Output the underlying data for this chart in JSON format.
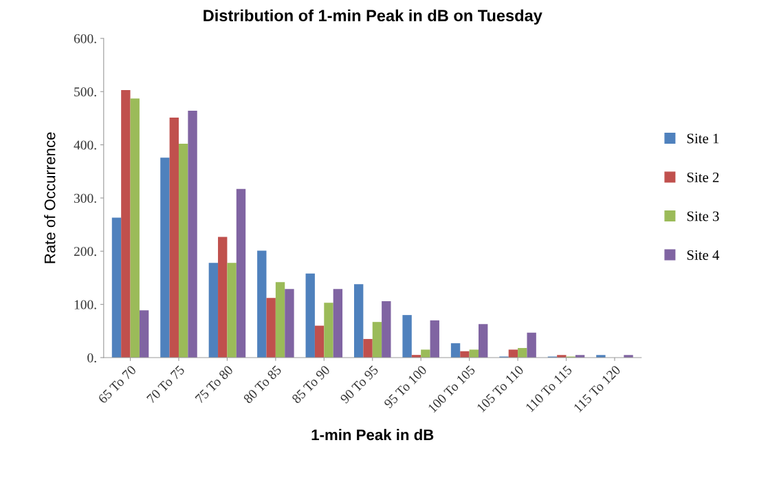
{
  "chart_data": {
    "type": "bar",
    "title": "Distribution of 1-min Peak in dB on Tuesday",
    "xlabel": "1-min Peak in dB",
    "ylabel": "Rate of Occurrence",
    "categories": [
      "65 To 70",
      "70 To 75",
      "75 To 80",
      "80 To 85",
      "85 To 90",
      "90 To 95",
      "95 To 100",
      "100 To 105",
      "105 To 110",
      "110 To 115",
      "115 To 120"
    ],
    "series": [
      {
        "name": "Site 1",
        "color": "#4f81bd",
        "values": [
          263,
          376,
          178,
          201,
          158,
          138,
          80,
          27,
          2,
          2,
          5
        ]
      },
      {
        "name": "Site 2",
        "color": "#c0504d",
        "values": [
          503,
          451,
          227,
          112,
          60,
          35,
          5,
          12,
          15,
          5,
          0
        ]
      },
      {
        "name": "Site 3",
        "color": "#9bbb59",
        "values": [
          487,
          402,
          178,
          142,
          103,
          67,
          15,
          15,
          18,
          2,
          0
        ]
      },
      {
        "name": "Site 4",
        "color": "#8064a2",
        "values": [
          89,
          464,
          317,
          129,
          129,
          106,
          70,
          63,
          47,
          5,
          5
        ]
      }
    ],
    "ylim": [
      0,
      600
    ],
    "yticks": [
      {
        "value": 0,
        "label": "0."
      },
      {
        "value": 100,
        "label": "100."
      },
      {
        "value": 200,
        "label": "200."
      },
      {
        "value": 300,
        "label": "300."
      },
      {
        "value": 400,
        "label": "400."
      },
      {
        "value": 500,
        "label": "500."
      },
      {
        "value": 600,
        "label": "600."
      }
    ],
    "grid": false,
    "legend": "right"
  }
}
